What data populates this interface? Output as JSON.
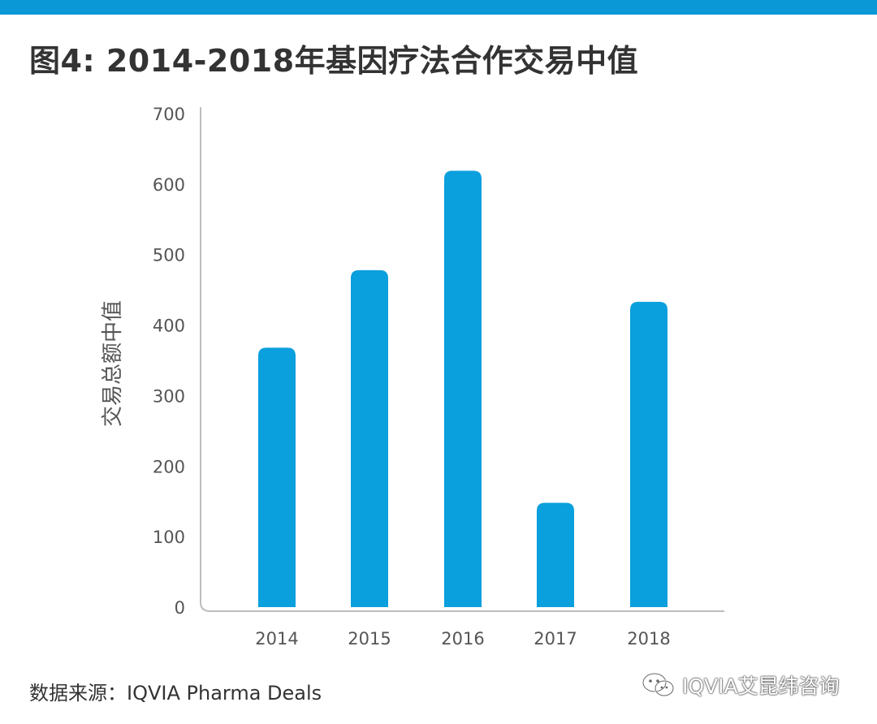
{
  "colors": {
    "top_bar": "#0A98D6",
    "bar": "#0A9FDD",
    "axis_line": "#BDBDBD",
    "tick_text": "#555555",
    "title_text": "#333333"
  },
  "header": {
    "title": "图4: 2014-2018年基因疗法合作交易中值"
  },
  "footer": {
    "source": "数据来源：IQVIA Pharma Deals",
    "watermark": "IQVIA艾昆纬咨询",
    "watermark_icon": "wechat-icon"
  },
  "chart_data": {
    "type": "bar",
    "title": "图4: 2014-2018年基因疗法合作交易中值",
    "categories": [
      "2014",
      "2015",
      "2016",
      "2017",
      "2018"
    ],
    "values": [
      368,
      478,
      619,
      148,
      433
    ],
    "xlabel": "",
    "ylabel": "交易总额中值",
    "ylim": [
      0,
      700
    ],
    "yticks": [
      0,
      100,
      200,
      300,
      400,
      500,
      600,
      700
    ],
    "grid": false,
    "legend": "none"
  }
}
